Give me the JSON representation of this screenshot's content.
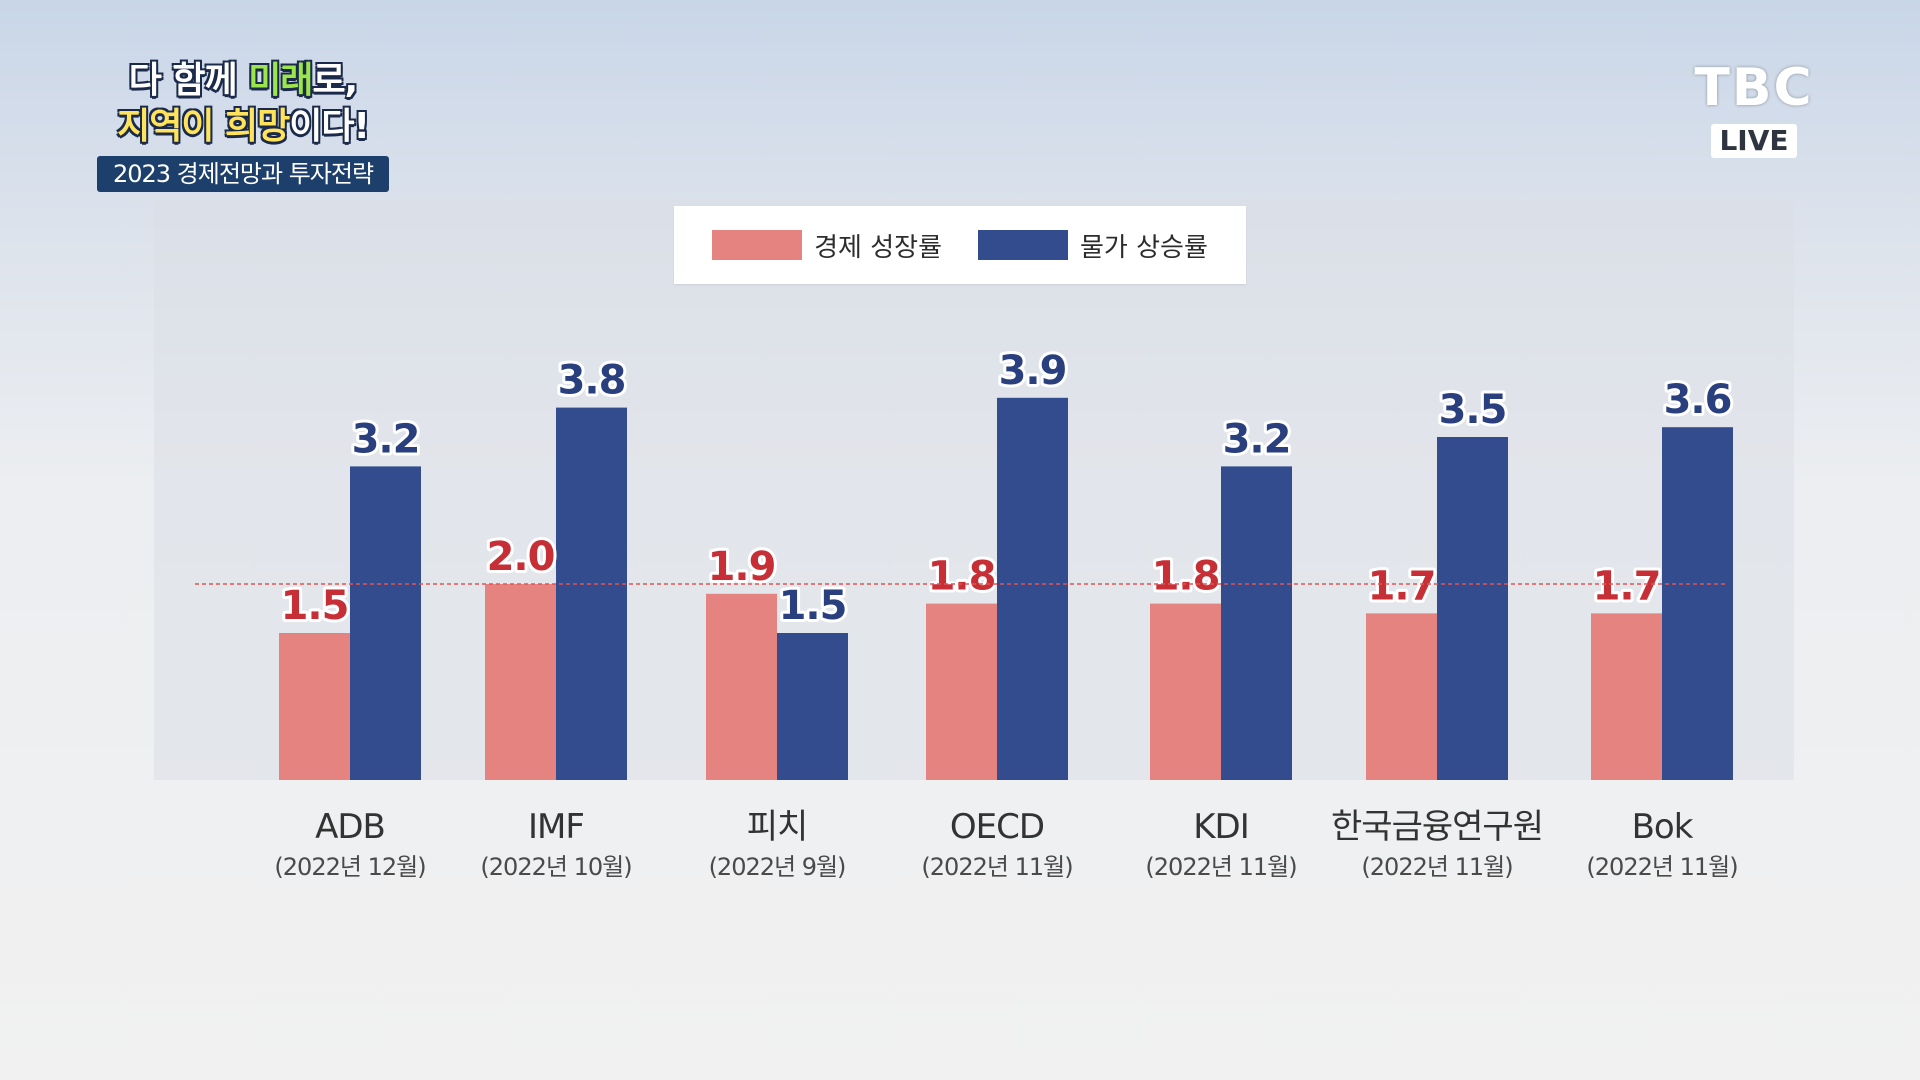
{
  "branding": {
    "slogan_line1_a": "다 함께 ",
    "slogan_line1_b": "미래",
    "slogan_line1_c": "로,",
    "slogan_line2_a": "지역이 희망",
    "slogan_line2_b": "이다!",
    "program_title": "2023 경제전망과 투자전략"
  },
  "logo": {
    "mark": "TBC",
    "live": "LIVE"
  },
  "colors": {
    "growth": "#e48380",
    "inflation": "#324c8e",
    "growth_label": "#c62f35",
    "inflation_label": "#293f7e",
    "reference_line": "#e05555"
  },
  "chart_data": {
    "type": "bar",
    "categories": [
      "ADB",
      "IMF",
      "피치",
      "OECD",
      "KDI",
      "한국금융연구원",
      "Bok"
    ],
    "subcategories": [
      "(2022년 12월)",
      "(2022년 10월)",
      "(2022년 9월)",
      "(2022년 11월)",
      "(2022년 11월)",
      "(2022년 11월)",
      "(2022년 11월)"
    ],
    "series": [
      {
        "name": "경제 성장률",
        "values": [
          1.5,
          2.0,
          1.9,
          1.8,
          1.8,
          1.7,
          1.7
        ]
      },
      {
        "name": "물가 상승률",
        "values": [
          3.2,
          3.8,
          1.5,
          3.9,
          3.2,
          3.5,
          3.6
        ]
      }
    ],
    "value_labels": {
      "growth": [
        "1.5",
        "2.0",
        "1.9",
        "1.8",
        "1.8",
        "1.7",
        "1.7"
      ],
      "inflation": [
        "3.2",
        "3.8",
        "1.5",
        "3.9",
        "3.2",
        "3.5",
        "3.6"
      ]
    },
    "reference_line": 2.0,
    "legend_position": "top-center",
    "grid": false,
    "ylim": [
      0,
      4.5
    ]
  }
}
